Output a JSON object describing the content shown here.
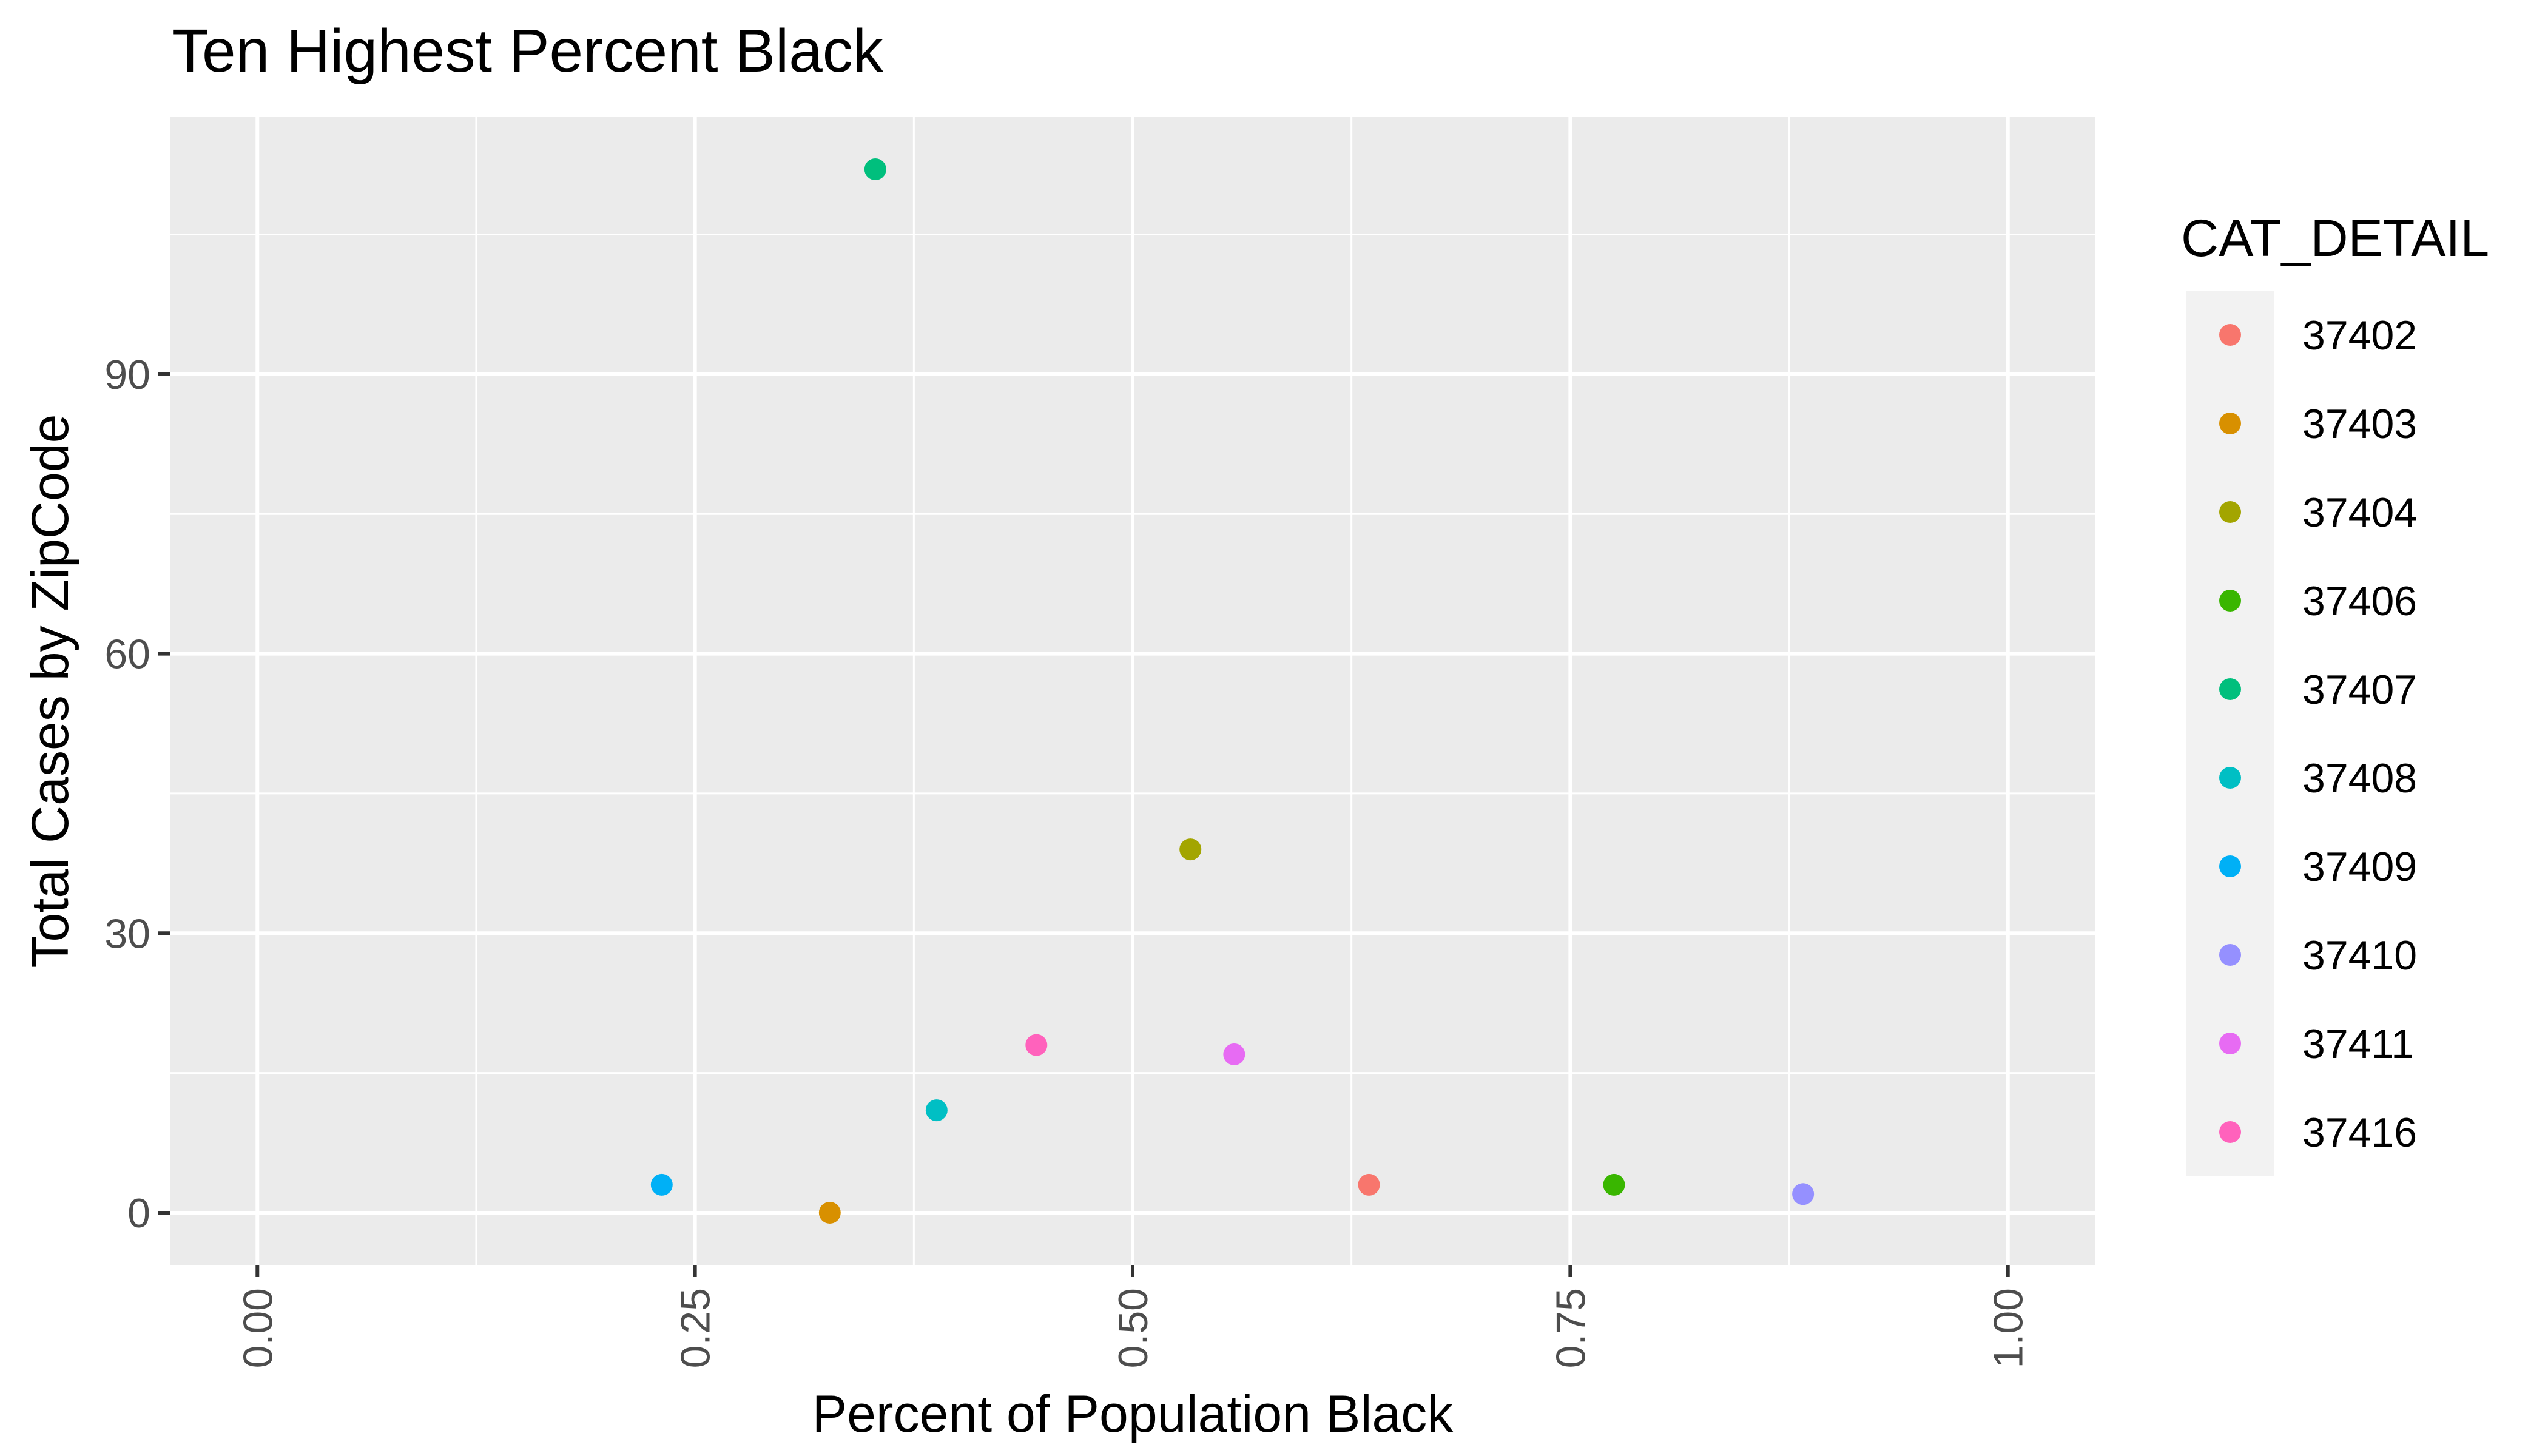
{
  "chart_data": {
    "type": "scatter",
    "title": "Ten Highest Percent Black",
    "xlabel": "Percent of Population Black",
    "ylabel": "Total Cases by ZipCode",
    "xlim": [
      0,
      1
    ],
    "ylim": [
      0,
      112
    ],
    "x_ticks": [
      "0.00",
      "0.25",
      "0.50",
      "0.75",
      "1.00"
    ],
    "y_ticks": [
      "0",
      "30",
      "60",
      "90"
    ],
    "x_tick_values": [
      0,
      0.25,
      0.5,
      0.75,
      1.0
    ],
    "y_tick_values": [
      0,
      30,
      60,
      90
    ],
    "x_tick_rotation": "vertical",
    "grid": true,
    "legend_position": "right",
    "legend_title": "CAT_DETAIL",
    "series": [
      {
        "name": "37402",
        "color": "#F8766D",
        "x": 0.635,
        "y": 3
      },
      {
        "name": "37403",
        "color": "#D89000",
        "x": 0.327,
        "y": 0
      },
      {
        "name": "37404",
        "color": "#A3A500",
        "x": 0.533,
        "y": 39
      },
      {
        "name": "37406",
        "color": "#39B600",
        "x": 0.775,
        "y": 3
      },
      {
        "name": "37407",
        "color": "#00BF7D",
        "x": 0.353,
        "y": 112
      },
      {
        "name": "37408",
        "color": "#00BFC4",
        "x": 0.388,
        "y": 11
      },
      {
        "name": "37409",
        "color": "#00B0F6",
        "x": 0.231,
        "y": 3
      },
      {
        "name": "37410",
        "color": "#9590FF",
        "x": 0.883,
        "y": 2
      },
      {
        "name": "37411",
        "color": "#E76BF3",
        "x": 0.558,
        "y": 17
      },
      {
        "name": "37416",
        "color": "#FF62BC",
        "x": 0.445,
        "y": 18
      }
    ]
  }
}
